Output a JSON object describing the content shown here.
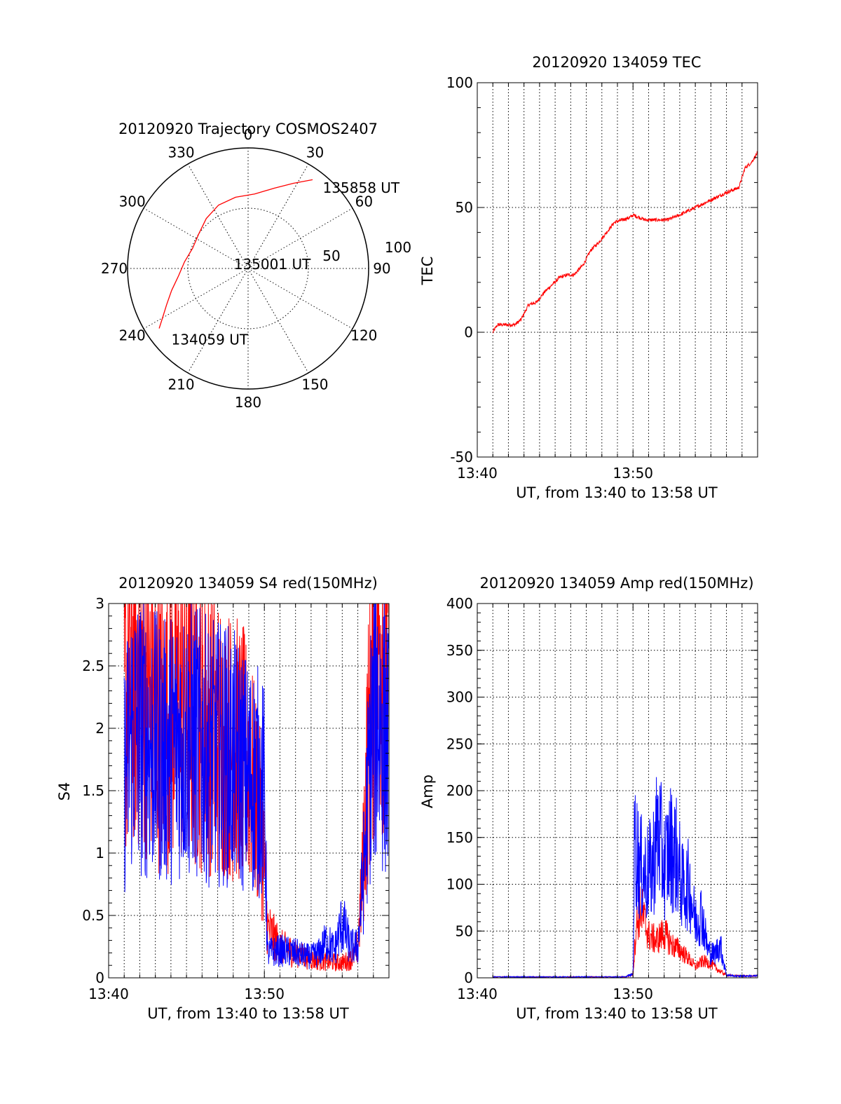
{
  "chart_data": [
    {
      "type": "polar",
      "title": "20120920 Trajectory COSMOS2407",
      "azimuth_labels": [
        "0",
        "30",
        "60",
        "90",
        "120",
        "150",
        "180",
        "210",
        "240",
        "270",
        "300",
        "330"
      ],
      "radial_labels": [
        "50",
        "100"
      ],
      "rlim": [
        0,
        100
      ],
      "grid": true,
      "series": [
        {
          "color": "#ff0000",
          "points": [
            {
              "az": 236,
              "r": 89
            },
            {
              "az": 240,
              "r": 82
            },
            {
              "az": 246,
              "r": 74
            },
            {
              "az": 254,
              "r": 66
            },
            {
              "az": 264,
              "r": 58
            },
            {
              "az": 276,
              "r": 53
            },
            {
              "az": 290,
              "r": 49
            },
            {
              "az": 305,
              "r": 50
            },
            {
              "az": 320,
              "r": 54
            },
            {
              "az": 335,
              "r": 58
            },
            {
              "az": 350,
              "r": 60
            },
            {
              "az": 5,
              "r": 62
            },
            {
              "az": 18,
              "r": 70
            },
            {
              "az": 28,
              "r": 80
            },
            {
              "az": 36,
              "r": 91
            }
          ]
        }
      ],
      "annotations": [
        {
          "text": "135858 UT",
          "az": 42,
          "r": 90
        },
        {
          "text": "135001 UT",
          "az": 285,
          "r": 14
        },
        {
          "text": "134059 UT",
          "az": 228,
          "r": 88
        }
      ]
    },
    {
      "type": "line",
      "title": "20120920 134059 TEC",
      "xlabel": "UT, from 13:40 to 13:58 UT",
      "ylabel": "TEC",
      "xlim": [
        0,
        18
      ],
      "ylim": [
        -50,
        100
      ],
      "x_ticks": [
        {
          "v": 0,
          "label": "13:40"
        },
        {
          "v": 10,
          "label": "13:50"
        }
      ],
      "y_ticks": [
        -50,
        0,
        50,
        100
      ],
      "grid": true,
      "series": [
        {
          "color": "#ff0000",
          "noise": 0.6,
          "x": [
            1.0,
            1.3,
            1.8,
            2.4,
            2.8,
            3.3,
            3.8,
            4.3,
            4.8,
            5.3,
            5.8,
            6.2,
            6.8,
            7.3,
            7.8,
            8.3,
            8.8,
            9.3,
            9.8,
            10.0,
            10.8,
            11.5,
            12.2,
            13.0,
            14.0,
            15.0,
            16.0,
            16.8,
            17.2,
            17.6,
            18.0
          ],
          "y": [
            0,
            3,
            3,
            3,
            5,
            11,
            12,
            16,
            19,
            22,
            23,
            23,
            27,
            33,
            36,
            40,
            44,
            45,
            46,
            47,
            45,
            45,
            45,
            47,
            50,
            53,
            56,
            58,
            66,
            68,
            72
          ]
        }
      ]
    },
    {
      "type": "line",
      "title": "20120920 134059 S4 red(150MHz)",
      "xlabel": "UT, from 13:40 to 13:58 UT",
      "ylabel": "S4",
      "xlim": [
        0,
        18
      ],
      "ylim": [
        0,
        3
      ],
      "x_ticks": [
        {
          "v": 0,
          "label": "13:40"
        },
        {
          "v": 10,
          "label": "13:50"
        }
      ],
      "y_ticks": [
        0,
        0.5,
        1,
        1.5,
        2,
        2.5,
        3
      ],
      "y_tick_labels": [
        "0",
        "0.5",
        "1",
        "1.5",
        "2",
        "2.5",
        "3"
      ],
      "grid": true,
      "series": [
        {
          "color": "#ff0000",
          "noise": 0.6,
          "x": [
            1.0,
            1.5,
            2.5,
            3.5,
            4.5,
            5.5,
            6.5,
            7.5,
            8.5,
            9.0,
            9.5,
            9.8,
            10.0,
            10.2,
            11.0,
            12.0,
            13.0,
            14.0,
            15.0,
            15.6,
            16.0,
            16.3,
            16.6,
            17.0,
            17.5,
            18.0
          ],
          "y": [
            2.2,
            2.5,
            2.3,
            2.0,
            2.2,
            2.1,
            2.0,
            1.9,
            1.8,
            1.7,
            1.4,
            1.2,
            0.9,
            0.4,
            0.25,
            0.2,
            0.15,
            0.13,
            0.12,
            0.15,
            0.25,
            0.8,
            1.7,
            2.5,
            2.8,
            2.6
          ]
        },
        {
          "color": "#0000ff",
          "noise": 0.6,
          "x": [
            1.0,
            1.5,
            2.5,
            3.5,
            4.5,
            5.5,
            6.5,
            7.5,
            8.5,
            9.0,
            9.5,
            9.8,
            10.0,
            10.2,
            11.0,
            12.0,
            12.5,
            13.0,
            13.5,
            14.0,
            14.5,
            15.0,
            15.5,
            16.0,
            16.4,
            16.8,
            17.2,
            17.6,
            18.0
          ],
          "y": [
            1.6,
            2.0,
            1.9,
            1.8,
            1.9,
            1.9,
            1.8,
            1.8,
            1.7,
            1.6,
            1.6,
            1.5,
            1.5,
            0.2,
            0.22,
            0.2,
            0.18,
            0.17,
            0.2,
            0.3,
            0.22,
            0.45,
            0.25,
            0.25,
            0.9,
            1.8,
            2.2,
            2.0,
            1.8
          ]
        }
      ]
    },
    {
      "type": "line",
      "title": "20120920 134059 Amp red(150MHz)",
      "xlabel": "UT, from 13:40 to 13:58 UT",
      "ylabel": "Amp",
      "xlim": [
        0,
        18
      ],
      "ylim": [
        0,
        400
      ],
      "x_ticks": [
        {
          "v": 0,
          "label": "13:40"
        },
        {
          "v": 10,
          "label": "13:50"
        }
      ],
      "y_ticks": [
        0,
        50,
        100,
        150,
        200,
        250,
        300,
        350,
        400
      ],
      "grid": true,
      "series": [
        {
          "color": "#ff0000",
          "noise": 0.4,
          "x": [
            1.0,
            5.0,
            9.5,
            10.0,
            10.2,
            10.5,
            11.0,
            11.5,
            12.0,
            12.5,
            13.0,
            13.5,
            14.0,
            14.5,
            15.0,
            15.5,
            16.0,
            16.5,
            17.0,
            18.0
          ],
          "y": [
            1,
            1,
            1,
            4,
            55,
            75,
            45,
            40,
            48,
            35,
            30,
            22,
            12,
            18,
            15,
            8,
            3,
            2,
            2,
            2
          ]
        },
        {
          "color": "#0000ff",
          "noise": 0.5,
          "x": [
            1.0,
            5.0,
            9.5,
            10.0,
            10.1,
            10.4,
            10.8,
            11.2,
            11.6,
            12.0,
            12.4,
            12.8,
            13.2,
            13.6,
            14.0,
            14.4,
            14.8,
            15.2,
            15.6,
            16.0,
            16.5,
            17.0,
            18.0
          ],
          "y": [
            1,
            1,
            1,
            4,
            150,
            120,
            110,
            115,
            160,
            120,
            140,
            130,
            95,
            100,
            60,
            70,
            30,
            25,
            35,
            3,
            2,
            2,
            2
          ]
        }
      ]
    }
  ]
}
